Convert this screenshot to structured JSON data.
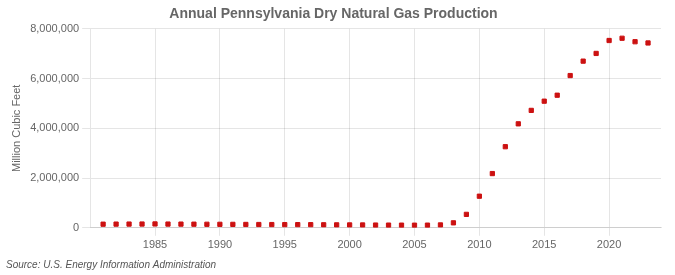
{
  "chart_data": {
    "type": "scatter",
    "title": "Annual Pennsylvania Dry Natural Gas Production",
    "ylabel": "Million Cubic Feet",
    "annotation": "Source: U.S. Energy Information Administration",
    "x": [
      1981,
      1982,
      1983,
      1984,
      1985,
      1986,
      1987,
      1988,
      1989,
      1990,
      1991,
      1992,
      1993,
      1994,
      1995,
      1996,
      1997,
      1998,
      1999,
      2000,
      2001,
      2002,
      2003,
      2004,
      2005,
      2006,
      2007,
      2008,
      2009,
      2010,
      2011,
      2012,
      2013,
      2014,
      2015,
      2016,
      2017,
      2018,
      2019,
      2020,
      2021,
      2022,
      2023
    ],
    "values": [
      145000,
      148000,
      150000,
      152000,
      155000,
      150000,
      148000,
      145000,
      142000,
      140000,
      138000,
      135000,
      132000,
      130000,
      128000,
      127000,
      125000,
      122000,
      118000,
      115000,
      113000,
      110000,
      108000,
      106000,
      105000,
      107000,
      115000,
      200000,
      540000,
      1270000,
      2180000,
      3260000,
      4180000,
      4720000,
      5090000,
      5330000,
      6120000,
      6700000,
      7010000,
      7530000,
      7620000,
      7480000,
      7430000
    ],
    "color": "#cc1111",
    "marker": "square",
    "xlim": [
      1980,
      2024
    ],
    "xticks": [
      1985,
      1990,
      1995,
      2000,
      2005,
      2010,
      2015,
      2020
    ],
    "ylim": [
      0,
      8000000
    ],
    "yticks": [
      0,
      {
        "value": 2000000,
        "label": "2,000,000"
      },
      {
        "value": 4000000,
        "label": "4,000,000"
      },
      {
        "value": 6000000,
        "label": "6,000,000"
      },
      {
        "value": 8000000,
        "label": "8,000,000"
      }
    ],
    "grid": true
  }
}
